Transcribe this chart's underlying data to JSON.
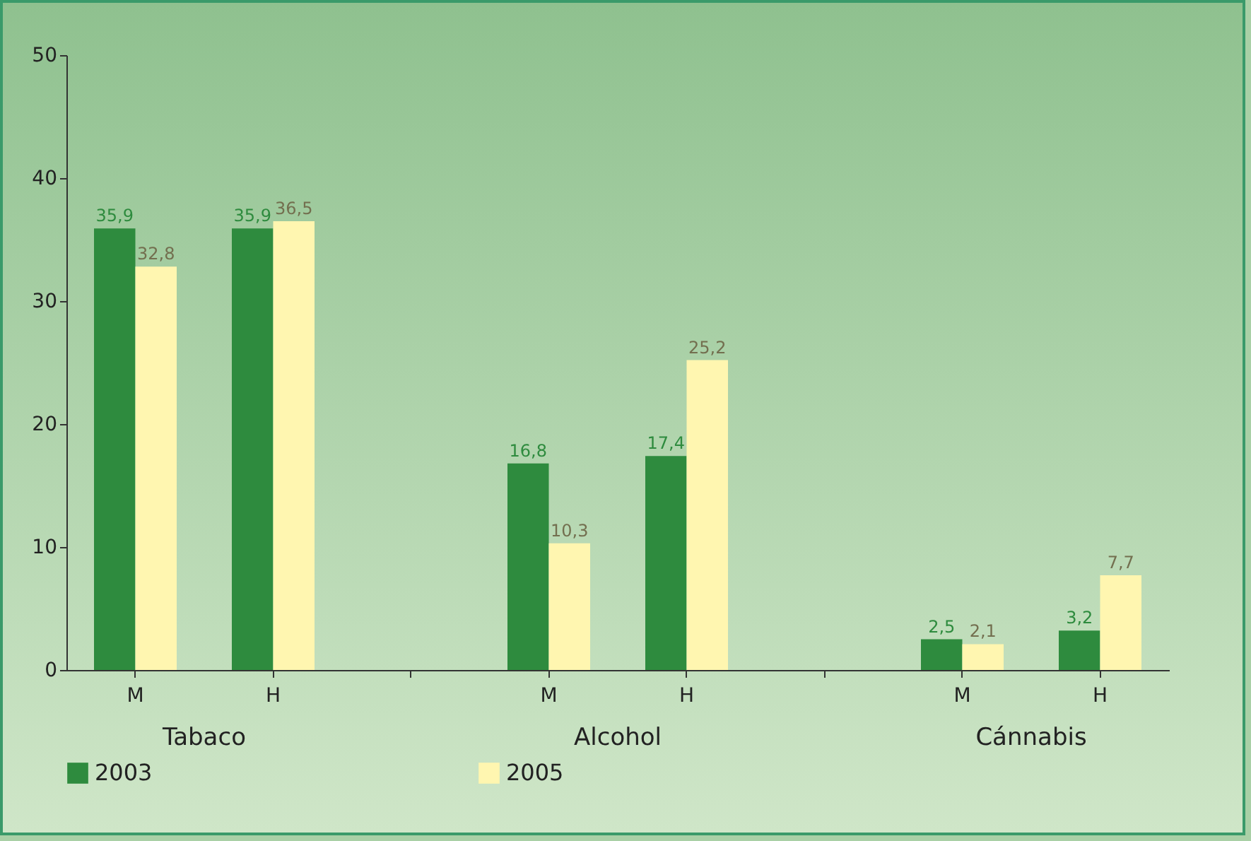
{
  "chart_data": {
    "type": "bar",
    "categories": [
      "M",
      "H",
      null,
      "M",
      "H",
      null,
      "M",
      "H"
    ],
    "series": [
      {
        "name": "2003",
        "color": "#2e8b3e",
        "values": [
          35.9,
          35.9,
          null,
          16.8,
          17.4,
          null,
          2.5,
          3.2
        ],
        "value_labels": [
          "35,9",
          "35,9",
          null,
          "16,8",
          "17,4",
          null,
          "2,5",
          "3,2"
        ]
      },
      {
        "name": "2005",
        "color": "#fff6b0",
        "values": [
          32.8,
          36.5,
          null,
          10.3,
          25.2,
          null,
          2.1,
          7.7
        ],
        "value_labels": [
          "32,8",
          "36,5",
          null,
          "10,3",
          "25,2",
          null,
          "2,1",
          "7,7"
        ]
      }
    ],
    "annotations": [
      "Tabaco",
      "Alcohol",
      "Cánnabis"
    ],
    "ylim": [
      0,
      50
    ],
    "yticks": [
      0,
      10,
      20,
      30,
      40,
      50
    ],
    "grid": false,
    "legend": "bottom"
  }
}
